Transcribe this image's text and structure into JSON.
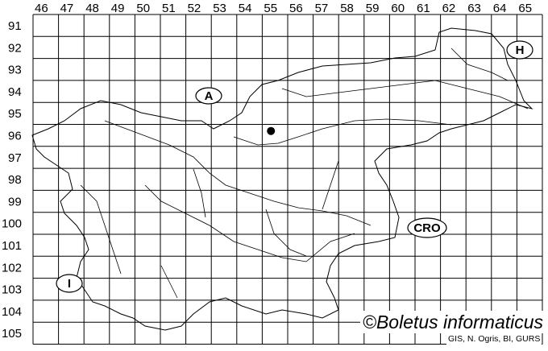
{
  "map": {
    "columns": [
      "46",
      "47",
      "48",
      "49",
      "50",
      "51",
      "52",
      "53",
      "54",
      "55",
      "56",
      "57",
      "58",
      "59",
      "60",
      "61",
      "62",
      "63",
      "64",
      "65"
    ],
    "rows": [
      "91",
      "92",
      "93",
      "94",
      "95",
      "96",
      "97",
      "98",
      "99",
      "100",
      "101",
      "102",
      "103",
      "104",
      "105"
    ],
    "country_labels": [
      {
        "id": "austria",
        "text": "A"
      },
      {
        "id": "hungary",
        "text": "H"
      },
      {
        "id": "croatia",
        "text": "CRO"
      },
      {
        "id": "italy",
        "text": "I"
      }
    ],
    "occurrence_points": [
      {
        "column": "55",
        "row": "96"
      }
    ],
    "line_color": "#000000",
    "point_color": "#000000"
  },
  "credit": "©Boletus informaticus",
  "source": "GIS, N. Ogris, BI, GURS"
}
